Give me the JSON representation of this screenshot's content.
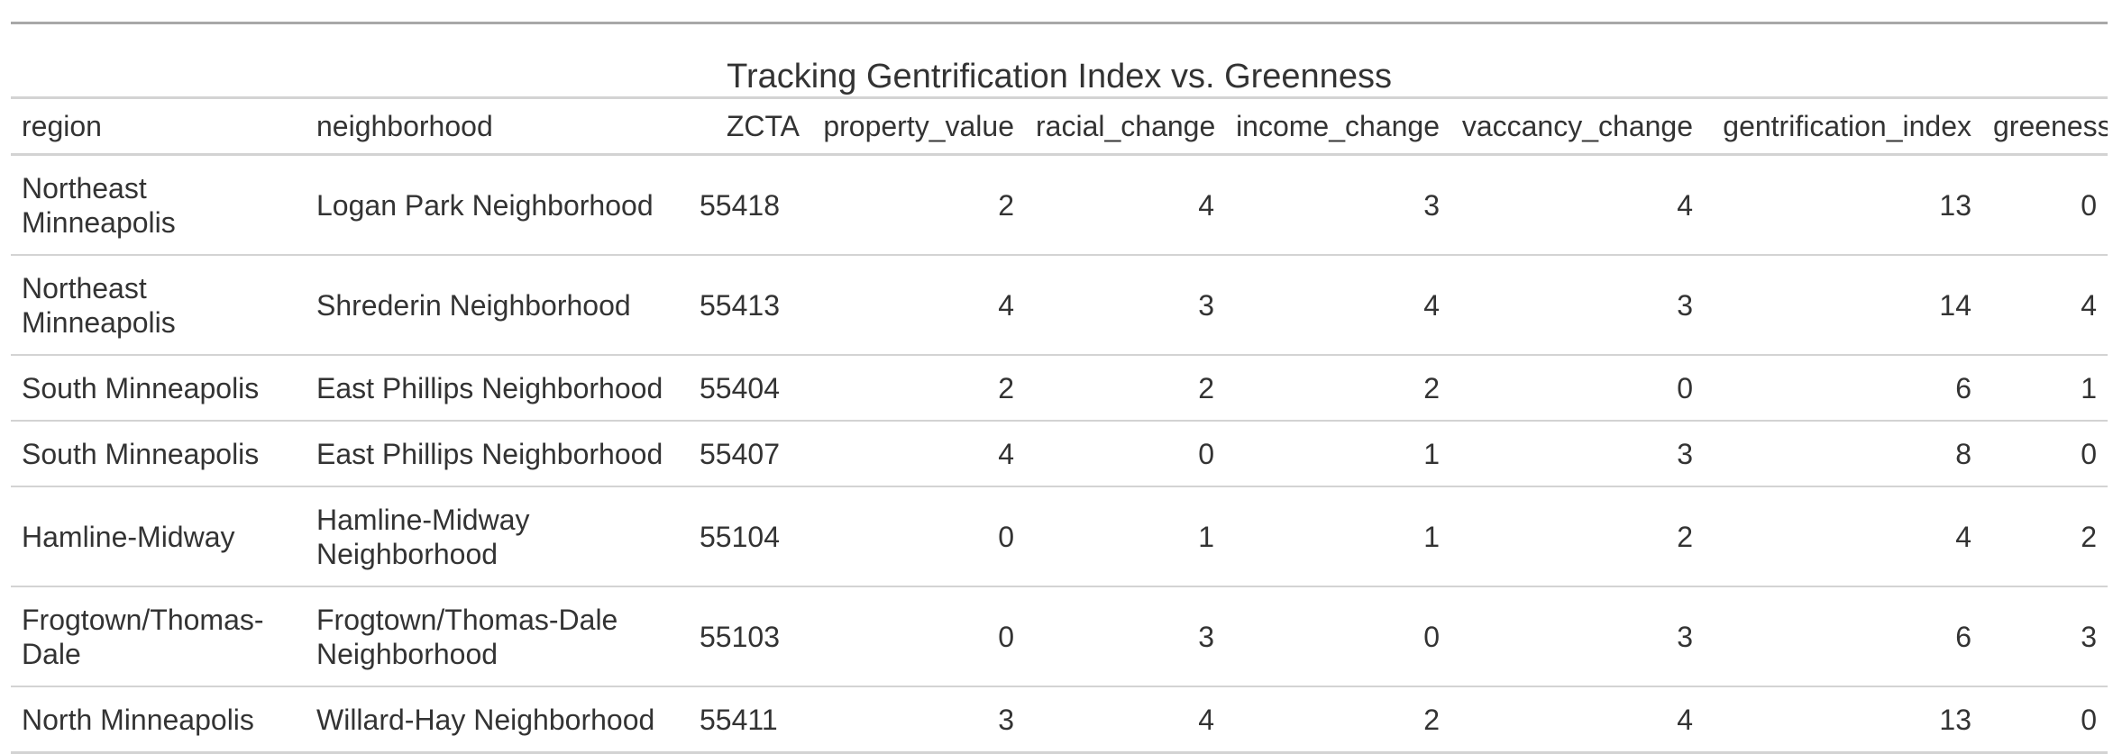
{
  "chart_data": {
    "type": "table",
    "title": "Tracking Gentrification Index vs. Greenness",
    "columns": [
      "region",
      "neighborhood",
      "ZCTA",
      "property_value",
      "racial_change",
      "income_change",
      "vaccancy_change",
      "gentrification_index",
      "greeness"
    ],
    "rows": [
      [
        "Northeast Minneapolis",
        "Logan Park Neighborhood",
        "55418",
        "2",
        "4",
        "3",
        "4",
        "13",
        "0"
      ],
      [
        "Northeast Minneapolis",
        "Shrederin Neighborhood",
        "55413",
        "4",
        "3",
        "4",
        "3",
        "14",
        "4"
      ],
      [
        "South Minneapolis",
        "East Phillips Neighborhood",
        "55404",
        "2",
        "2",
        "2",
        "0",
        "6",
        "1"
      ],
      [
        "South Minneapolis",
        "East Phillips Neighborhood",
        "55407",
        "4",
        "0",
        "1",
        "3",
        "8",
        "0"
      ],
      [
        "Hamline-Midway",
        "Hamline-Midway Neighborhood",
        "55104",
        "0",
        "1",
        "1",
        "2",
        "4",
        "2"
      ],
      [
        "Frogtown/Thomas-Dale",
        "Frogtown/Thomas-Dale Neighborhood",
        "55103",
        "0",
        "3",
        "0",
        "3",
        "6",
        "3"
      ],
      [
        "North Minneapolis",
        "Willard-Hay Neighborhood",
        "55411",
        "3",
        "4",
        "2",
        "4",
        "13",
        "0"
      ]
    ]
  }
}
